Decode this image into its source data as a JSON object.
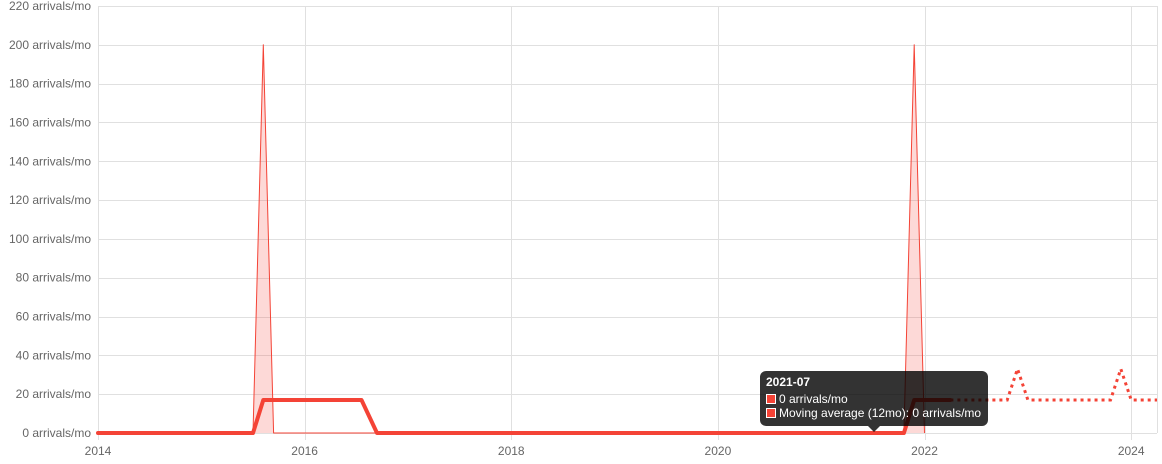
{
  "chart_data": {
    "type": "line",
    "colors": {
      "series": "#f44336",
      "fill": "rgba(244,67,54,0.2)",
      "grid": "#e0e0e0",
      "tick": "#666666"
    },
    "x_axis": {
      "min": 2014.0,
      "max": 2024.25,
      "ticks": [
        "2014",
        "2016",
        "2018",
        "2020",
        "2022",
        "2024"
      ]
    },
    "y_axis": {
      "min": 0,
      "max": 220,
      "ticks": [
        "0 arrivals/mo",
        "20 arrivals/mo",
        "40 arrivals/mo",
        "60 arrivals/mo",
        "80 arrivals/mo",
        "100 arrivals/mo",
        "120 arrivals/mo",
        "140 arrivals/mo",
        "160 arrivals/mo",
        "180 arrivals/mo",
        "200 arrivals/mo",
        "220 arrivals/mo"
      ]
    },
    "grid": true,
    "legend": "none",
    "series": [
      {
        "style": "area",
        "points": [
          [
            2014.0,
            0
          ],
          [
            2015.5,
            0
          ],
          [
            2015.6,
            200
          ],
          [
            2015.7,
            0
          ],
          [
            2021.8,
            0
          ],
          [
            2021.9,
            200
          ],
          [
            2022.0,
            0
          ]
        ]
      },
      {
        "name": "Moving average (12mo)",
        "style": "line-thick",
        "points": [
          [
            2014.0,
            0
          ],
          [
            2015.5,
            0
          ],
          [
            2015.6,
            17
          ],
          [
            2016.55,
            17
          ],
          [
            2016.7,
            0
          ],
          [
            2021.8,
            0
          ],
          [
            2021.9,
            17
          ],
          [
            2022.25,
            17
          ]
        ]
      },
      {
        "style": "dotted-forecast",
        "points": [
          [
            2022.25,
            17
          ],
          [
            2022.8,
            17
          ],
          [
            2022.9,
            33
          ],
          [
            2023.0,
            17
          ],
          [
            2023.8,
            17
          ],
          [
            2023.9,
            33
          ],
          [
            2024.0,
            17
          ],
          [
            2024.25,
            17
          ]
        ]
      }
    ]
  },
  "tooltip": {
    "title": "2021-07",
    "rows": [
      {
        "label": "0 arrivals/mo",
        "swatch": "#f44336"
      },
      {
        "label": "Moving average (12mo): 0 arrivals/mo",
        "swatch": "#f44336"
      }
    ]
  }
}
